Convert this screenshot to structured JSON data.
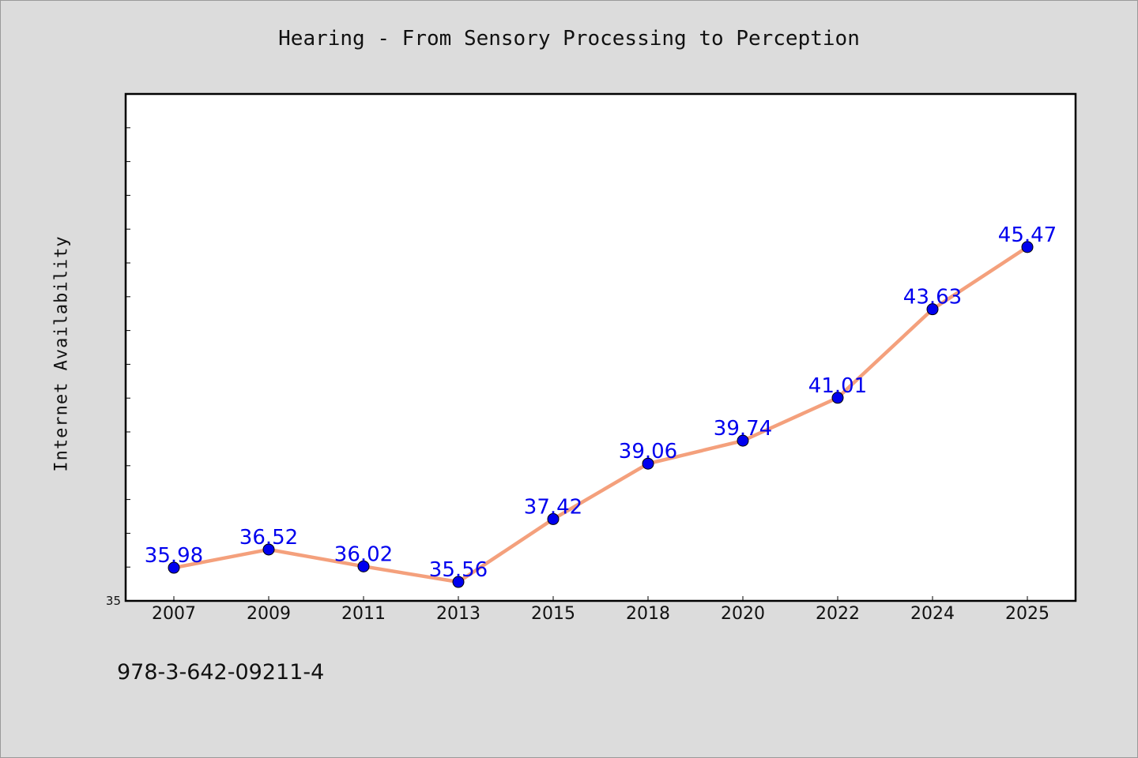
{
  "chart_data": {
    "type": "line",
    "title": "Hearing - From Sensory Processing to Perception",
    "xlabel": "",
    "ylabel": "Internet Availability",
    "categories": [
      "2007",
      "2009",
      "2011",
      "2013",
      "2015",
      "2018",
      "2020",
      "2022",
      "2024",
      "2025"
    ],
    "series": [
      {
        "values": [
          35.98,
          36.52,
          36.02,
          35.56,
          37.42,
          39.06,
          39.74,
          41.01,
          43.63,
          45.47
        ]
      }
    ],
    "data_labels": [
      "35.98",
      "36.52",
      "36.02",
      "35.56",
      "37.42",
      "39.06",
      "39.74",
      "41.01",
      "43.63",
      "45.47"
    ],
    "ylim": [
      35,
      50
    ],
    "ytick_label": "35",
    "grid": false,
    "legend": "none",
    "colors": {
      "line": "#f4a07c",
      "marker": "#0000ee",
      "label": "#0000ee",
      "background": "#dcdcdc",
      "plot_background": "#ffffff"
    }
  },
  "footer": {
    "isbn": "978-3-642-09211-4"
  }
}
